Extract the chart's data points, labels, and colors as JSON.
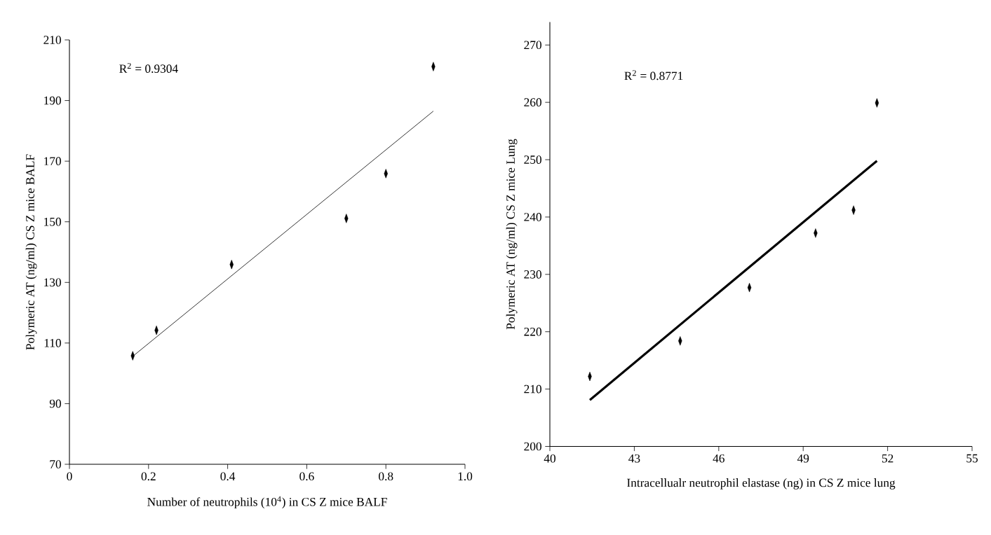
{
  "chart_data": [
    {
      "type": "scatter",
      "xlabel": "Number of neutrophils (10$^{4}$) in CS Z mice BALF",
      "ylabel": "Polymeric AT (ng/ml) CS Z mice BALF",
      "annotations": [
        "R$^{2}$ = 0.9304"
      ],
      "xlim": [
        0,
        1
      ],
      "xticks": [
        0,
        0.2,
        0.4,
        0.6,
        0.8,
        {
          "value": 1,
          "label": "1.0"
        }
      ],
      "ylim": [
        70,
        210
      ],
      "yticks": [
        70,
        90,
        110,
        130,
        150,
        170,
        190,
        210
      ],
      "series": [
        {
          "color": "#000000",
          "marker": "diamond",
          "x": [
            0.16,
            0.22,
            0.41,
            0.7,
            0.8,
            0.92
          ],
          "values": [
            105.8,
            114.2,
            135.9,
            151.1,
            165.9,
            201.2
          ]
        },
        {
          "type": "line",
          "color": "#000000",
          "marker": "none",
          "line_style": "solid",
          "x": [
            0.16,
            0.92
          ],
          "values": [
            105.6,
            186.5
          ]
        }
      ]
    },
    {
      "type": "scatter",
      "xlabel": "Intracellualr neutrophil elastase (ng) in CS Z mice lung",
      "ylabel": "Polymeric AT (ng/ml) CS Z mice Lung",
      "annotations": [
        "R$^{2}$ = 0.8771"
      ],
      "xlim": [
        40,
        55
      ],
      "xticks": [
        40,
        43,
        46,
        49,
        52,
        55
      ],
      "ylim": [
        200,
        274
      ],
      "yticks": [
        200,
        210,
        220,
        230,
        240,
        250,
        260,
        270
      ],
      "series": [
        {
          "color": "#000000",
          "marker": "diamond",
          "x": [
            41.42,
            44.63,
            47.09,
            49.44,
            50.79,
            51.62
          ],
          "values": [
            212.2,
            218.4,
            227.7,
            237.2,
            241.2,
            259.9
          ]
        },
        {
          "type": "line",
          "color": "#000000",
          "marker": "none",
          "line_style": "solid",
          "x": [
            41.42,
            51.62
          ],
          "values": [
            208.1,
            249.8
          ]
        }
      ]
    }
  ]
}
